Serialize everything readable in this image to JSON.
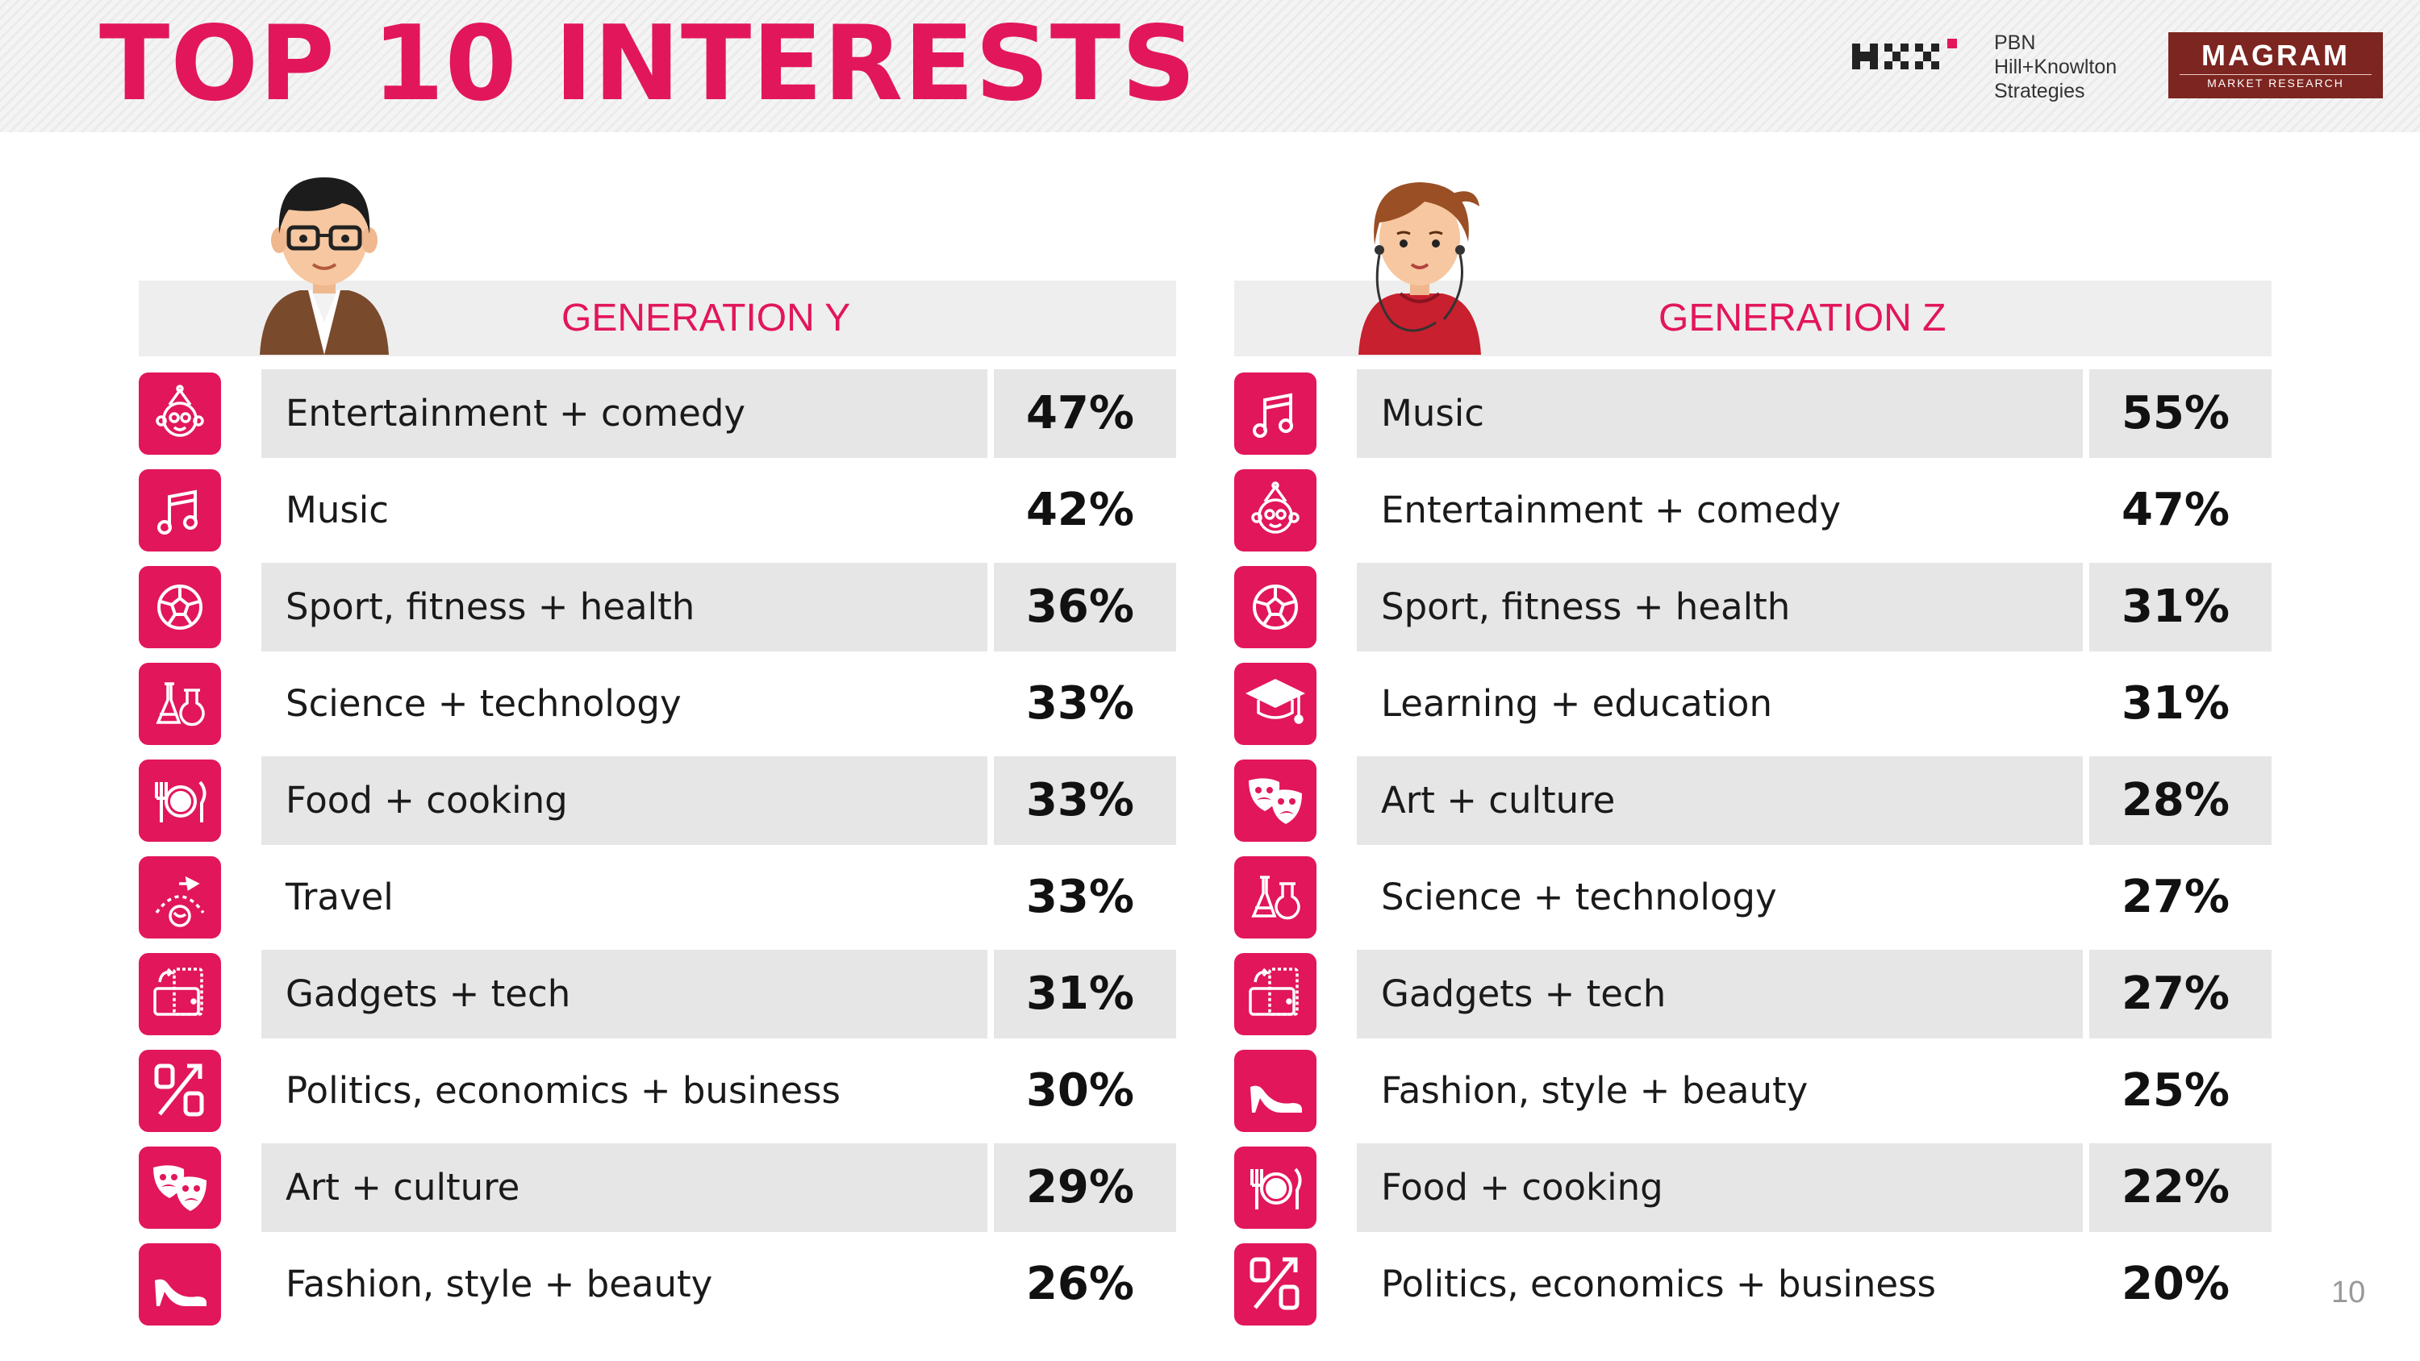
{
  "title": "TOP 10 INTERESTS",
  "logos": {
    "pbn": [
      "PBN",
      "Hill+Knowlton",
      "Strategies"
    ],
    "magram": {
      "name": "MAGRAM",
      "tagline": "MARKET RESEARCH"
    }
  },
  "page_number": "10",
  "colors": {
    "accent": "#e2165b",
    "row_shade": "#e6e6e6",
    "header_bar": "#eeeeee",
    "magram": "#7d2520"
  },
  "gen_y": {
    "label": "GENERATION Y",
    "rows": [
      {
        "icon": "entertainment-icon",
        "label": "Entertainment + comedy",
        "value": "47%"
      },
      {
        "icon": "music-icon",
        "label": "Music",
        "value": "42%"
      },
      {
        "icon": "sport-icon",
        "label": "Sport, fitness + health",
        "value": "36%"
      },
      {
        "icon": "science-icon",
        "label": "Science + technology",
        "value": "33%"
      },
      {
        "icon": "food-icon",
        "label": "Food + cooking",
        "value": "33%"
      },
      {
        "icon": "travel-icon",
        "label": "Travel",
        "value": "33%"
      },
      {
        "icon": "gadgets-icon",
        "label": "Gadgets + tech",
        "value": "31%"
      },
      {
        "icon": "politics-icon",
        "label": "Politics, economics + business",
        "value": "30%"
      },
      {
        "icon": "art-icon",
        "label": "Art + culture",
        "value": "29%"
      },
      {
        "icon": "fashion-icon",
        "label": "Fashion, style + beauty",
        "value": "26%"
      }
    ]
  },
  "gen_z": {
    "label": "GENERATION Z",
    "rows": [
      {
        "icon": "music-icon",
        "label": "Music",
        "value": "55%"
      },
      {
        "icon": "entertainment-icon",
        "label": "Entertainment + comedy",
        "value": "47%"
      },
      {
        "icon": "sport-icon",
        "label": "Sport, fitness + health",
        "value": "31%"
      },
      {
        "icon": "education-icon",
        "label": "Learning + education",
        "value": "31%"
      },
      {
        "icon": "art-icon",
        "label": "Art + culture",
        "value": "28%"
      },
      {
        "icon": "science-icon",
        "label": "Science + technology",
        "value": "27%"
      },
      {
        "icon": "gadgets-icon",
        "label": "Gadgets + tech",
        "value": "27%"
      },
      {
        "icon": "fashion-icon",
        "label": "Fashion, style + beauty",
        "value": "25%"
      },
      {
        "icon": "food-icon",
        "label": "Food + cooking",
        "value": "22%"
      },
      {
        "icon": "politics-icon",
        "label": "Politics, economics + business",
        "value": "20%"
      }
    ]
  }
}
